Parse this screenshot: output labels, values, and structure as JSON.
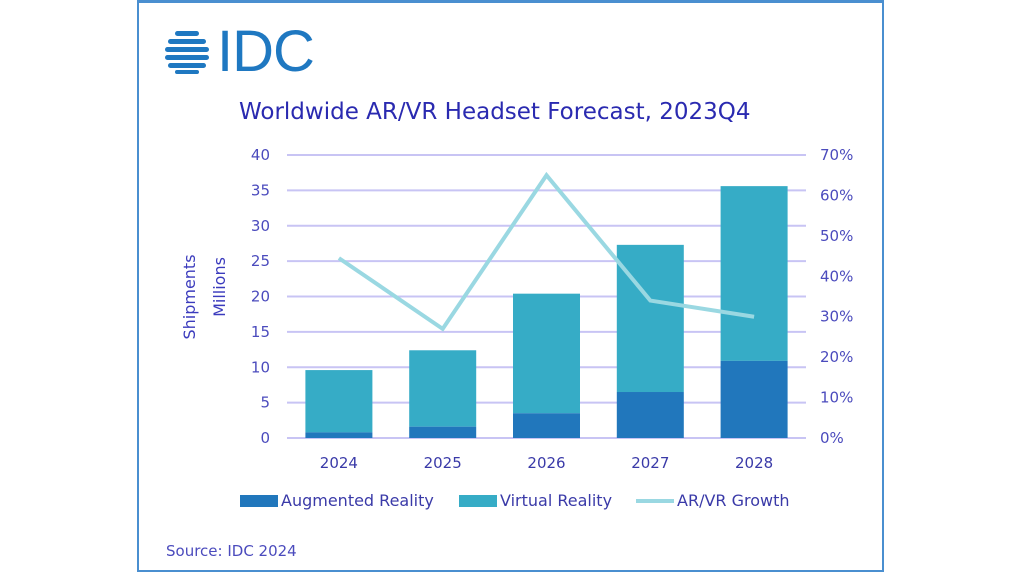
{
  "logo": {
    "text": "IDC",
    "icon": "globe-stripes-icon",
    "color": "#1f78c1"
  },
  "source": "Source: IDC 2024",
  "colors": {
    "augmented_reality": "#2177bc",
    "virtual_reality": "#36acc6",
    "growth_line": "#9ad8e2",
    "gridline": "#c8c4f4",
    "axis_text": "#4b4bbd",
    "border": "#4a8fd0"
  },
  "chart_data": {
    "type": "bar",
    "stacked": true,
    "title": "Worldwide AR/VR Headset Forecast, 2023Q4",
    "xlabel": "",
    "ylabel": [
      "Shipments",
      "Millions"
    ],
    "categories": [
      "2024",
      "2025",
      "2026",
      "2027",
      "2028"
    ],
    "ylim": [
      0,
      40
    ],
    "yticks": [
      0,
      5,
      10,
      15,
      20,
      25,
      30,
      35,
      40
    ],
    "y2lim": [
      0,
      70
    ],
    "y2ticks": [
      "0%",
      "10%",
      "20%",
      "30%",
      "40%",
      "50%",
      "60%",
      "70%"
    ],
    "y2ticks_values": [
      0,
      10,
      20,
      30,
      40,
      50,
      60,
      70
    ],
    "grid": true,
    "legend_position": "bottom",
    "series": [
      {
        "name": "Augmented Reality",
        "type": "bar",
        "axis": "left",
        "values": [
          0.8,
          1.6,
          3.5,
          6.5,
          10.9
        ]
      },
      {
        "name": "Virtual Reality",
        "type": "bar",
        "axis": "left",
        "values": [
          8.8,
          10.8,
          16.9,
          20.8,
          24.7
        ]
      },
      {
        "name": "AR/VR Growth",
        "type": "line",
        "axis": "right",
        "unit": "%",
        "values": [
          44.5,
          27.0,
          65.0,
          34.0,
          30.0
        ]
      }
    ]
  }
}
